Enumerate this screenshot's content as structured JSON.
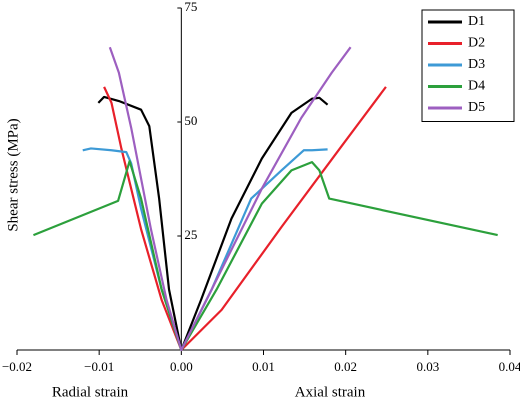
{
  "chart_data": {
    "type": "line",
    "y_label": "Shear stress (MPa)",
    "x_labels": [
      "Radial strain",
      "Axial strain"
    ],
    "xlim": [
      -0.02,
      0.04
    ],
    "xticks": [
      {
        "value": -0.02,
        "label": "−0.02"
      },
      {
        "value": -0.01,
        "label": "−0.01"
      },
      {
        "value": 0,
        "label": "0.00"
      },
      0.01,
      0.02,
      0.03,
      0.04
    ],
    "ylim": [
      0,
      75
    ],
    "yticks": [
      25,
      50,
      75
    ],
    "legend": "upper right",
    "series": [
      {
        "name": "D1",
        "color": "#000000",
        "x": [
          -0.0101,
          -0.0094,
          -0.0076,
          -0.0049,
          -0.0039,
          -0.0027,
          -0.0015,
          0,
          0.0024,
          0.0061,
          0.0098,
          0.0134,
          0.0159,
          0.0168,
          0.0178
        ],
        "values": [
          54.2,
          55.5,
          54.6,
          52.7,
          49.1,
          33.2,
          13.3,
          0,
          11,
          28.8,
          42,
          52,
          55.1,
          55.3,
          53.8
        ]
      },
      {
        "name": "D2",
        "color": "#e8202a",
        "x": [
          -0.0094,
          -0.0085,
          -0.0073,
          -0.0049,
          -0.0024,
          0,
          0.0049,
          0.0122,
          0.0195,
          0.0249
        ],
        "values": [
          57.7,
          54.2,
          44.2,
          26.5,
          11,
          0,
          8.8,
          27,
          44.7,
          57.7
        ]
      },
      {
        "name": "D3",
        "color": "#3d9ad6",
        "x": [
          -0.012,
          -0.011,
          -0.0085,
          -0.0067,
          -0.0061,
          -0.0049,
          -0.0024,
          0,
          0.0037,
          0.0085,
          0.0122,
          0.0149,
          0.0159,
          0.0178
        ],
        "values": [
          43.8,
          44.2,
          43.8,
          43.4,
          40.9,
          31,
          13.3,
          0,
          13.3,
          33.2,
          39.4,
          43.8,
          43.8,
          44
        ]
      },
      {
        "name": "D4",
        "color": "#2ca03c",
        "x": [
          -0.018,
          -0.0077,
          -0.0063,
          -0.0049,
          -0.0024,
          0,
          0.0043,
          0.0098,
          0.0134,
          0.0159,
          0.0168,
          0.018,
          0.0385
        ],
        "values": [
          25.2,
          32.7,
          41.4,
          33.2,
          13.3,
          0,
          13.3,
          32.1,
          39.4,
          41.2,
          39.4,
          33.2,
          25.2
        ]
      },
      {
        "name": "D5",
        "color": "#9d5fc0",
        "x": [
          -0.0087,
          -0.0076,
          -0.0061,
          -0.0037,
          -0.0018,
          0,
          0.0037,
          0.0098,
          0.0146,
          0.0183,
          0.0206
        ],
        "values": [
          66.4,
          60.8,
          48.7,
          26.5,
          11,
          0,
          13.3,
          35.4,
          50.9,
          60.8,
          66.4
        ]
      }
    ]
  }
}
